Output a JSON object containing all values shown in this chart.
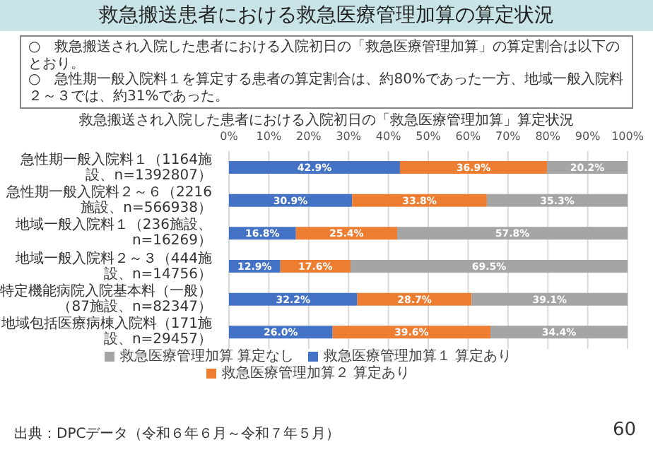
{
  "chart_data": {
    "type": "bar",
    "orientation": "horizontal",
    "stacked": true,
    "title": "救急搬送患者における救急医療管理加算の算定状況",
    "subtitle": "救急搬送され入院した患者における入院初日の「救急医療管理加算」算定状況",
    "annotations": [
      "○　救急搬送され入院した患者における入院初日の「救急医療管理加算」の算定割合は以下のとおり。",
      "○　急性期一般入院料１を算定する患者の算定割合は、約80%であった一方、地域一般入院料２～３では、約31%であった。",
      "出典：DPCデータ（令和６年６月～令和７年５月）",
      "60"
    ],
    "categories": [
      "急性期一般入院料１（1164施設、n=1392807）",
      "急性期一般入院料２～６（2216施設、n=566938）",
      "地域一般入院料１（236施設、n=16269）",
      "地域一般入院料２～３（444施設、n=14756）",
      "特定機能病院入院基本料（一般）（87施設、n=82347）",
      "地域包括医療病棟入院料（171施設、n=29457）"
    ],
    "series": [
      {
        "name": "救急医療管理加算１ 算定あり",
        "color": "#4472c4",
        "values": [
          42.9,
          30.9,
          16.8,
          12.9,
          32.2,
          26.0
        ],
        "value_labels": [
          "42.9%",
          "30.9%",
          "16.8%",
          "12.9%",
          "32.2%",
          "26.0%"
        ]
      },
      {
        "name": "救急医療管理加算２ 算定あり",
        "color": "#ed7d31",
        "values": [
          36.9,
          33.8,
          25.4,
          17.6,
          28.7,
          39.6
        ],
        "value_labels": [
          "36.9%",
          "33.8%",
          "25.4%",
          "17.6%",
          "28.7%",
          "39.6%"
        ]
      },
      {
        "name": "救急医療管理加算 算定なし",
        "color": "#a5a5a5",
        "values": [
          20.2,
          35.3,
          57.8,
          69.5,
          39.1,
          34.4
        ],
        "value_labels": [
          "20.2%",
          "35.3%",
          "57.8%",
          "69.5%",
          "39.1%",
          "34.4%"
        ]
      }
    ],
    "xlim": [
      0,
      100
    ],
    "xticks": [
      {
        "value": 0,
        "label": "0%"
      },
      {
        "value": 10,
        "label": "10%"
      },
      {
        "value": 20,
        "label": "20%"
      },
      {
        "value": 30,
        "label": "30%"
      },
      {
        "value": 40,
        "label": "40%"
      },
      {
        "value": 50,
        "label": "50%"
      },
      {
        "value": 60,
        "label": "60%"
      },
      {
        "value": 70,
        "label": "70%"
      },
      {
        "value": 80,
        "label": "80%"
      },
      {
        "value": 90,
        "label": "90%"
      },
      {
        "value": 100,
        "label": "100%"
      }
    ],
    "grid": "x",
    "legend": "bottom"
  }
}
